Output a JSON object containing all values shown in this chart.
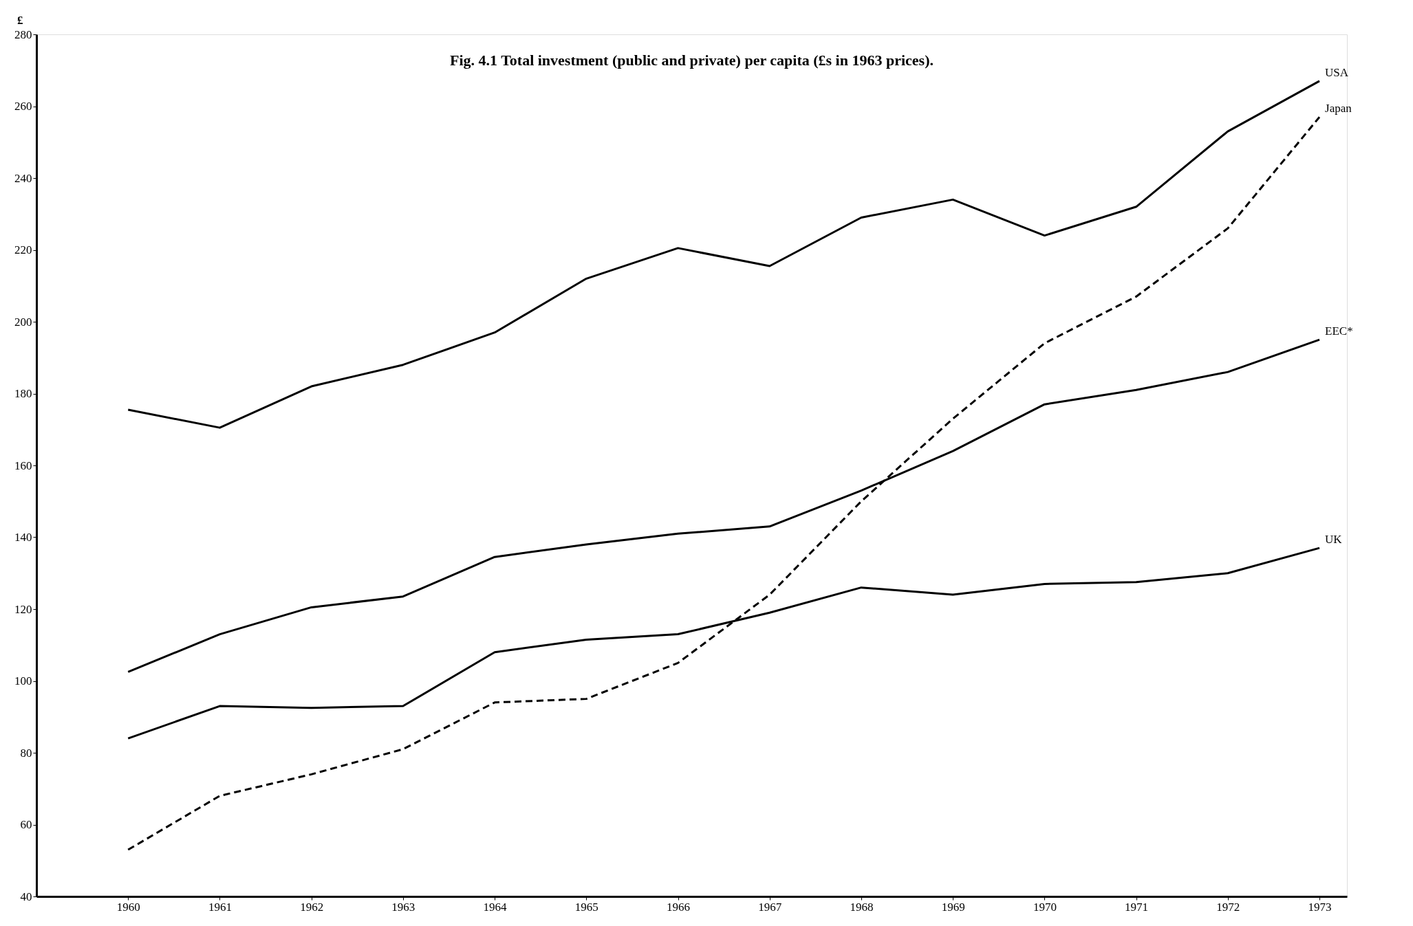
{
  "chart_data": {
    "type": "line",
    "title": "Fig. 4.1 Total investment (public and private) per capita (£s in 1963 prices).",
    "ylabel": "£",
    "x": [
      1960,
      1961,
      1962,
      1963,
      1964,
      1965,
      1966,
      1967,
      1968,
      1969,
      1970,
      1971,
      1972,
      1973
    ],
    "series": [
      {
        "name": "USA",
        "color": "#000000",
        "line_style": "solid",
        "values": [
          175.5,
          170.5,
          182,
          188,
          197,
          212,
          220.5,
          215.5,
          229,
          234,
          224,
          232,
          253,
          267
        ]
      },
      {
        "name": "Japan",
        "color": "#000000",
        "line_style": "dashed",
        "values": [
          53,
          68,
          74,
          81,
          94,
          95,
          105,
          124,
          150,
          173,
          194,
          207,
          226,
          257
        ]
      },
      {
        "name": "EEC*",
        "color": "#000000",
        "line_style": "solid",
        "values": [
          102.5,
          113,
          120.5,
          123.5,
          134.5,
          138,
          141,
          143,
          153,
          164,
          177,
          181,
          186,
          195
        ]
      },
      {
        "name": "UK",
        "color": "#000000",
        "line_style": "solid",
        "values": [
          84,
          93,
          92.5,
          93,
          108,
          111.5,
          113,
          119,
          126,
          124,
          127,
          127.5,
          130,
          137
        ]
      }
    ],
    "xlim": [
      1959,
      1973.3
    ],
    "xticks": [
      1960,
      1961,
      1962,
      1963,
      1964,
      1965,
      1966,
      1967,
      1968,
      1969,
      1970,
      1971,
      1972,
      1973
    ],
    "ylim": [
      40,
      280
    ],
    "yticks": [
      40,
      60,
      80,
      100,
      120,
      140,
      160,
      180,
      200,
      220,
      240,
      260,
      280
    ],
    "grid": false,
    "legend": false,
    "marker": "none"
  }
}
